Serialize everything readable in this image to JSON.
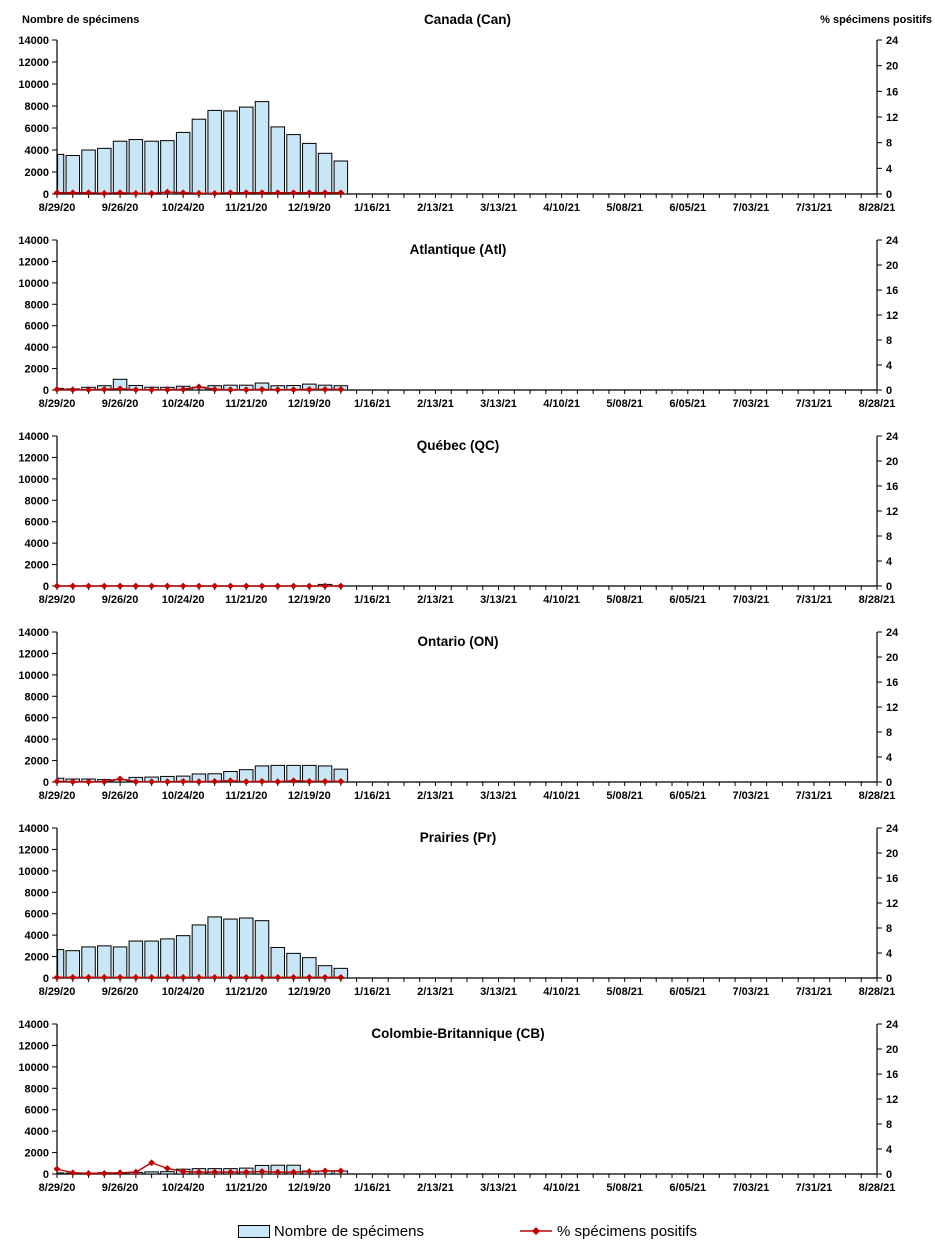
{
  "colors": {
    "bar_fill": "#C8E6F5",
    "bar_border": "#000000",
    "line_color": "#C00000",
    "axis_color": "#000000"
  },
  "axes": {
    "left_title": "Nombre de spécimens",
    "right_title": "% spécimens positifs",
    "left_ticks": [
      "0",
      "2000",
      "4000",
      "6000",
      "8000",
      "10000",
      "12000",
      "14000"
    ],
    "left_max": 14000,
    "right_ticks": [
      "0",
      "4",
      "8",
      "12",
      "16",
      "20",
      "24"
    ],
    "right_max": 24,
    "weeks_total": 53,
    "label_every": 4,
    "x_tick_labels": [
      "8/29/20",
      "9/26/20",
      "10/24/20",
      "11/21/20",
      "12/19/20",
      "1/16/21",
      "2/13/21",
      "3/13/21",
      "4/10/21",
      "5/08/21",
      "6/05/21",
      "7/03/21",
      "7/31/21",
      "8/28/21"
    ]
  },
  "legend": {
    "bars": "Nombre de spécimens",
    "line": "% spécimens positifs"
  },
  "chart_data": [
    {
      "type": "bar+line",
      "title": "Canada (Can)",
      "categories": [
        "8/29/20",
        "9/05/20",
        "9/12/20",
        "9/19/20",
        "9/26/20",
        "10/03/20",
        "10/10/20",
        "10/17/20",
        "10/24/20",
        "10/31/20",
        "11/07/20",
        "11/14/20",
        "11/21/20",
        "11/28/20",
        "12/05/20",
        "12/12/20",
        "12/19/20",
        "12/26/20",
        "1/02/21"
      ],
      "series": [
        {
          "name": "Nombre de spécimens",
          "axis": "left",
          "values": [
            3600,
            3500,
            4000,
            4150,
            4800,
            4950,
            4800,
            4850,
            5600,
            6800,
            7600,
            7550,
            7900,
            8400,
            6100,
            5400,
            4600,
            3700,
            3000
          ]
        },
        {
          "name": "% spécimens positifs",
          "axis": "right",
          "values": [
            0.2,
            0.2,
            0.2,
            0.1,
            0.2,
            0.1,
            0.1,
            0.3,
            0.2,
            0.1,
            0.1,
            0.2,
            0.2,
            0.2,
            0.2,
            0.2,
            0.2,
            0.2,
            0.2
          ]
        }
      ],
      "ylim_left": [
        0,
        14000
      ],
      "ylim_right": [
        0,
        24
      ]
    },
    {
      "type": "bar+line",
      "title": "Atlantique (Atl)",
      "categories": [
        "8/29/20",
        "9/05/20",
        "9/12/20",
        "9/19/20",
        "9/26/20",
        "10/03/20",
        "10/10/20",
        "10/17/20",
        "10/24/20",
        "10/31/20",
        "11/07/20",
        "11/14/20",
        "11/21/20",
        "11/28/20",
        "12/05/20",
        "12/12/20",
        "12/19/20",
        "12/26/20",
        "1/02/21"
      ],
      "series": [
        {
          "name": "Nombre de spécimens",
          "axis": "left",
          "values": [
            150,
            100,
            250,
            400,
            1000,
            420,
            260,
            250,
            350,
            260,
            400,
            450,
            450,
            650,
            400,
            420,
            550,
            450,
            400
          ]
        },
        {
          "name": "% spécimens positifs",
          "axis": "right",
          "values": [
            0.1,
            0.05,
            0.05,
            0.1,
            0.2,
            0.05,
            0.05,
            0.05,
            0.1,
            0.5,
            0.1,
            0.05,
            0.05,
            0.1,
            0.05,
            0.05,
            0.1,
            0.1,
            0.1
          ]
        }
      ],
      "ylim_left": [
        0,
        14000
      ],
      "ylim_right": [
        0,
        24
      ]
    },
    {
      "type": "bar+line",
      "title": "Québec (QC)",
      "categories": [
        "8/29/20",
        "9/05/20",
        "9/12/20",
        "9/19/20",
        "9/26/20",
        "10/03/20",
        "10/10/20",
        "10/17/20",
        "10/24/20",
        "10/31/20",
        "11/07/20",
        "11/14/20",
        "11/21/20",
        "11/28/20",
        "12/05/20",
        "12/12/20",
        "12/19/20",
        "12/26/20",
        "1/02/21"
      ],
      "series": [
        {
          "name": "Nombre de spécimens",
          "axis": "left",
          "values": [
            0,
            0,
            0,
            0,
            0,
            0,
            0,
            0,
            0,
            0,
            0,
            0,
            0,
            0,
            0,
            0,
            0,
            150,
            0
          ]
        },
        {
          "name": "% spécimens positifs",
          "axis": "right",
          "values": [
            0,
            0,
            0,
            0,
            0,
            0,
            0,
            0,
            0,
            0,
            0,
            0,
            0,
            0,
            0,
            0,
            0,
            0,
            0
          ]
        }
      ],
      "ylim_left": [
        0,
        14000
      ],
      "ylim_right": [
        0,
        24
      ]
    },
    {
      "type": "bar+line",
      "title": "Ontario (ON)",
      "categories": [
        "8/29/20",
        "9/05/20",
        "9/12/20",
        "9/19/20",
        "9/26/20",
        "10/03/20",
        "10/10/20",
        "10/17/20",
        "10/24/20",
        "10/31/20",
        "11/07/20",
        "11/14/20",
        "11/21/20",
        "11/28/20",
        "12/05/20",
        "12/12/20",
        "12/19/20",
        "12/26/20",
        "1/02/21"
      ],
      "series": [
        {
          "name": "Nombre de spécimens",
          "axis": "left",
          "values": [
            350,
            280,
            280,
            220,
            220,
            430,
            460,
            520,
            550,
            750,
            770,
            980,
            1150,
            1500,
            1550,
            1550,
            1550,
            1500,
            1200
          ]
        },
        {
          "name": "% spécimens positifs",
          "axis": "right",
          "values": [
            0.1,
            0.05,
            0.05,
            0.05,
            0.5,
            0.05,
            0.05,
            0.05,
            0.1,
            0.05,
            0.1,
            0.2,
            0.05,
            0.1,
            0.05,
            0.2,
            0.1,
            0.1,
            0.1
          ]
        }
      ],
      "ylim_left": [
        0,
        14000
      ],
      "ylim_right": [
        0,
        24
      ]
    },
    {
      "type": "bar+line",
      "title": "Prairies (Pr)",
      "categories": [
        "8/29/20",
        "9/05/20",
        "9/12/20",
        "9/19/20",
        "9/26/20",
        "10/03/20",
        "10/10/20",
        "10/17/20",
        "10/24/20",
        "10/31/20",
        "11/07/20",
        "11/14/20",
        "11/21/20",
        "11/28/20",
        "12/05/20",
        "12/12/20",
        "12/19/20",
        "12/26/20",
        "1/02/21"
      ],
      "series": [
        {
          "name": "Nombre de spécimens",
          "axis": "left",
          "values": [
            2650,
            2550,
            2900,
            3000,
            2900,
            3450,
            3450,
            3650,
            3950,
            4950,
            5700,
            5500,
            5600,
            5350,
            2850,
            2300,
            1900,
            1150,
            900
          ]
        },
        {
          "name": "% spécimens positifs",
          "axis": "right",
          "values": [
            0.1,
            0.1,
            0.1,
            0.1,
            0.1,
            0.1,
            0.1,
            0.1,
            0.1,
            0.1,
            0.1,
            0.1,
            0.1,
            0.1,
            0.1,
            0.1,
            0.1,
            0.1,
            0.1
          ]
        }
      ],
      "ylim_left": [
        0,
        14000
      ],
      "ylim_right": [
        0,
        24
      ]
    },
    {
      "type": "bar+line",
      "title": "Colombie-Britannique (CB)",
      "categories": [
        "8/29/20",
        "9/05/20",
        "9/12/20",
        "9/19/20",
        "9/26/20",
        "10/03/20",
        "10/10/20",
        "10/17/20",
        "10/24/20",
        "10/31/20",
        "11/07/20",
        "11/14/20",
        "11/21/20",
        "11/28/20",
        "12/05/20",
        "12/12/20",
        "12/19/20",
        "12/26/20",
        "1/02/21"
      ],
      "series": [
        {
          "name": "Nombre de spécimens",
          "axis": "left",
          "values": [
            100,
            80,
            80,
            120,
            100,
            150,
            200,
            220,
            450,
            500,
            500,
            500,
            550,
            800,
            820,
            820,
            280,
            280,
            280
          ]
        },
        {
          "name": "% spécimens positifs",
          "axis": "right",
          "values": [
            0.8,
            0.2,
            0.1,
            0.1,
            0.2,
            0.3,
            1.8,
            0.9,
            0.4,
            0.3,
            0.3,
            0.3,
            0.3,
            0.4,
            0.3,
            0.3,
            0.4,
            0.5,
            0.5
          ]
        }
      ],
      "ylim_left": [
        0,
        14000
      ],
      "ylim_right": [
        0,
        24
      ]
    }
  ]
}
